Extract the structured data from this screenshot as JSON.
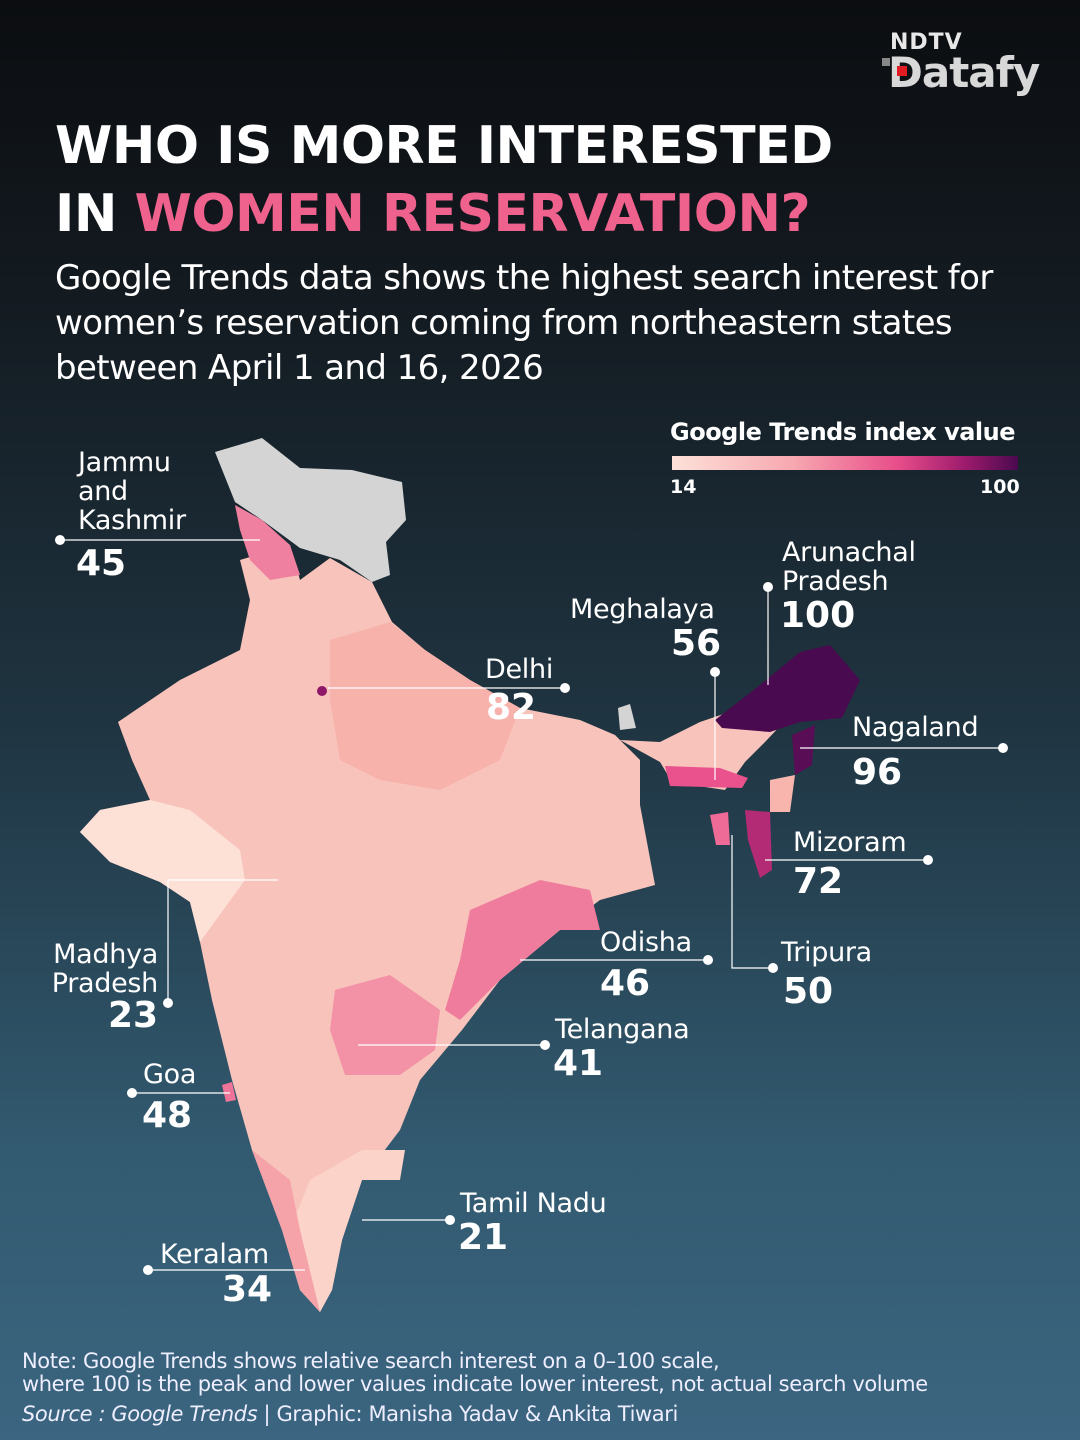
{
  "logo": {
    "line1": "NDTV",
    "line2": "Datafy"
  },
  "title": {
    "line1": "WHO IS MORE INTERESTED",
    "line2_prefix": "IN ",
    "line2_highlight": "WOMEN RESERVATION?"
  },
  "subtitle": "Google Trends data shows the highest search interest for women’s reservation coming from northeastern states between April 1 and 16, 2026",
  "legend": {
    "title": "Google Trends index value",
    "min": "14",
    "max": "100",
    "colors": [
      "#fde1d8",
      "#f7a8b0",
      "#e84e8a",
      "#9c1a6c",
      "#4a0a4f"
    ]
  },
  "states": [
    {
      "name": "Jammu and Kashmir",
      "value": 45
    },
    {
      "name": "Arunachal Pradesh",
      "value": 100
    },
    {
      "name": "Meghalaya",
      "value": 56
    },
    {
      "name": "Delhi",
      "value": 82
    },
    {
      "name": "Nagaland",
      "value": 96
    },
    {
      "name": "Mizoram",
      "value": 72
    },
    {
      "name": "Madhya Pradesh",
      "value": 23
    },
    {
      "name": "Odisha",
      "value": 46
    },
    {
      "name": "Tripura",
      "value": 50
    },
    {
      "name": "Telangana",
      "value": 41
    },
    {
      "name": "Goa",
      "value": 48
    },
    {
      "name": "Tamil Nadu",
      "value": 21
    },
    {
      "name": "Keralam",
      "value": 34
    }
  ],
  "labels": {
    "jk": [
      "Jammu",
      "and",
      "Kashmir"
    ],
    "ap": [
      "Arunachal",
      "Pradesh"
    ],
    "mp": [
      "Madhya",
      "Pradesh"
    ]
  },
  "footer": {
    "note1": "Note: Google Trends shows relative search interest on a 0–100 scale,",
    "note2": "where 100 is the peak and lower values indicate lower interest, not actual search volume",
    "source_label": "Source : Google Trends",
    "credit": " | Graphic: Manisha Yadav & Ankita Tiwari"
  }
}
